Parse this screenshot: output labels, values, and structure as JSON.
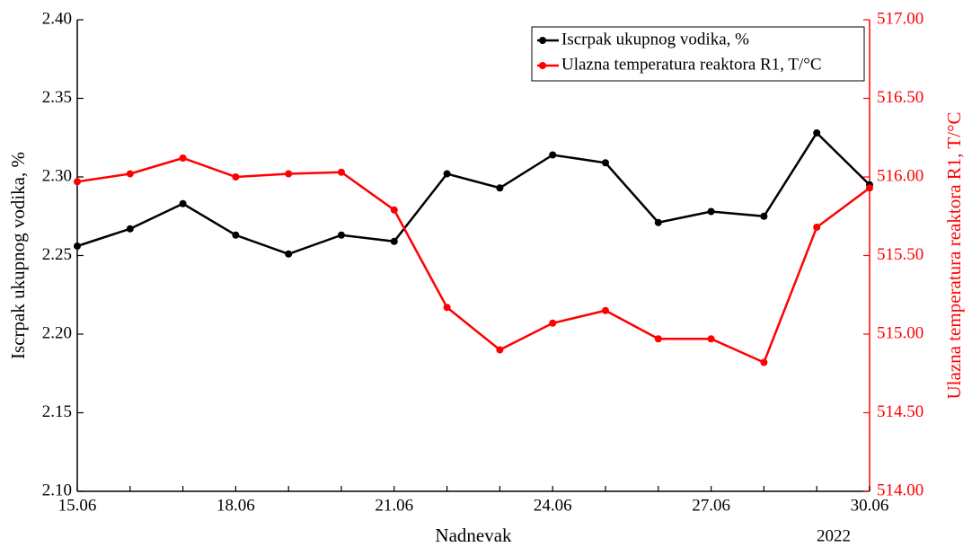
{
  "chart_data": {
    "type": "line",
    "categories": [
      "15.06",
      null,
      null,
      "18.06",
      null,
      null,
      "21.06",
      null,
      null,
      "24.06",
      null,
      null,
      "27.06",
      null,
      null,
      "30.06"
    ],
    "xlabel": "Nadnevak",
    "ylabel": "Iscrpak ukupnog vodika, %",
    "y2label": "Ulazna temperatura reaktora R1, T/°C",
    "annotation": "2022",
    "series": [
      {
        "name": "Iscrpak ukupnog vodika, %",
        "color": "#000000",
        "values": [
          2.256,
          2.267,
          2.283,
          2.263,
          2.251,
          2.263,
          2.259,
          2.302,
          2.293,
          2.314,
          2.309,
          2.271,
          2.278,
          2.275,
          2.328,
          2.295
        ]
      },
      {
        "name": "Ulazna temperatura reaktora R1, T/°C",
        "color": "#ff0000",
        "axis": "y2",
        "values": [
          515.97,
          516.02,
          516.12,
          516.0,
          516.02,
          516.03,
          515.79,
          515.17,
          514.9,
          515.07,
          515.15,
          514.97,
          514.97,
          514.82,
          515.68,
          515.93
        ]
      }
    ],
    "ylim": [
      2.1,
      2.4
    ],
    "yticks": [
      {
        "value": 2.1,
        "label": "2.10"
      },
      2.15,
      {
        "value": 2.2,
        "label": "2.20"
      },
      2.25,
      {
        "value": 2.3,
        "label": "2.30"
      },
      2.35,
      {
        "value": 2.4,
        "label": "2.40"
      }
    ],
    "y2lim": [
      514,
      517
    ],
    "y2ticks": [
      {
        "value": 514,
        "label": "514.00"
      },
      {
        "value": 514.5,
        "label": "514.50"
      },
      {
        "value": 515,
        "label": "515.00"
      },
      {
        "value": 515.5,
        "label": "515.50"
      },
      {
        "value": 516,
        "label": "516.00"
      },
      {
        "value": 516.5,
        "label": "516.50"
      },
      {
        "value": 517,
        "label": "517.00"
      }
    ],
    "y2color": "#ff0000",
    "legend": "upper right"
  }
}
